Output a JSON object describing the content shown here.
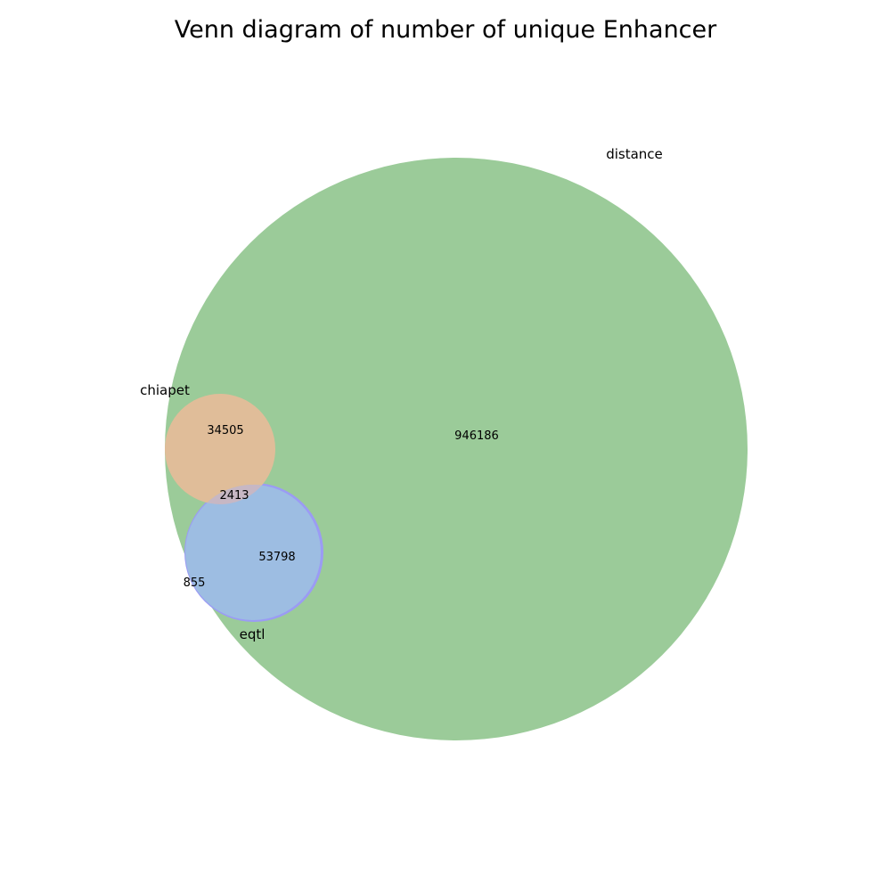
{
  "title": "Venn diagram of number of unique Enhancer",
  "sets": {
    "distance": {
      "label": "distance",
      "color": "#9bcb99"
    },
    "chiapet": {
      "label": "chiapet",
      "color": "#e0bd99"
    },
    "eqtl": {
      "label": "eqtl",
      "color": "#9dbde2"
    },
    "eqtl_only": {
      "color": "#9b9bf4"
    }
  },
  "regions": {
    "distance_only": "946186",
    "chiapet_distance": "34505",
    "chiapet_eqtl_distance": "2413",
    "eqtl_distance": "53798",
    "eqtl_only": "855"
  }
}
